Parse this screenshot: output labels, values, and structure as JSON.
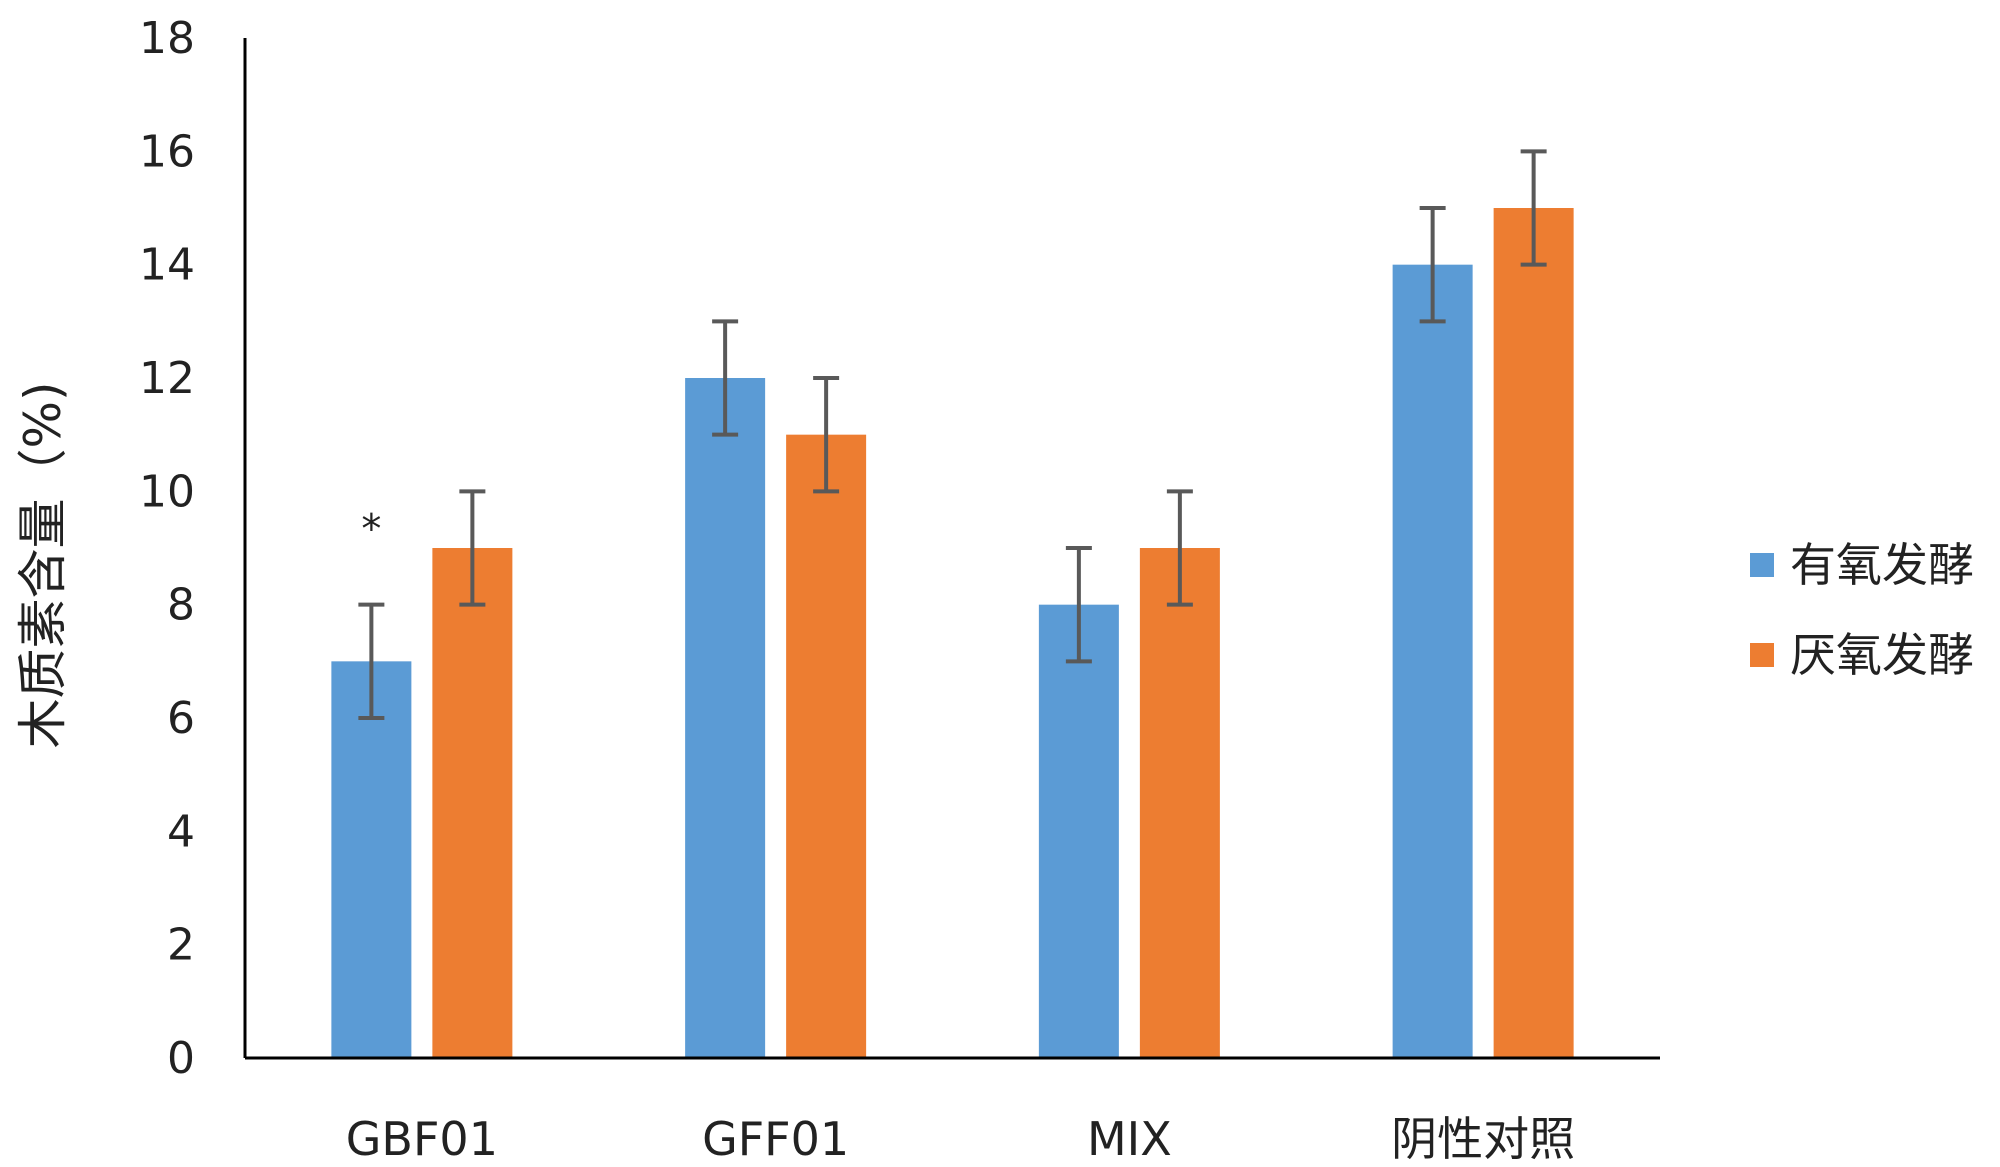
{
  "chart_data": {
    "type": "bar",
    "title": "",
    "xlabel": "",
    "ylabel": "木质素含量（%)",
    "ylim": [
      0,
      18
    ],
    "yticks": [
      0,
      2,
      4,
      6,
      8,
      10,
      12,
      14,
      16,
      18
    ],
    "grid": false,
    "legend_position": "right",
    "categories": [
      "GBF01",
      "GFF01",
      "MIX",
      "阴性对照"
    ],
    "series": [
      {
        "name": "有氧发酵",
        "color": "#5B9BD5",
        "values": [
          7,
          12,
          8,
          14
        ],
        "errors": [
          1,
          1,
          1,
          1
        ]
      },
      {
        "name": "厌氧发酵",
        "color": "#ED7D31",
        "values": [
          9,
          11,
          9,
          15
        ],
        "errors": [
          1,
          1,
          1,
          1
        ]
      }
    ],
    "annotations": [
      {
        "text": "*",
        "category": "GBF01",
        "series": "有氧发酵"
      }
    ],
    "error_bar_color": "#595959"
  }
}
